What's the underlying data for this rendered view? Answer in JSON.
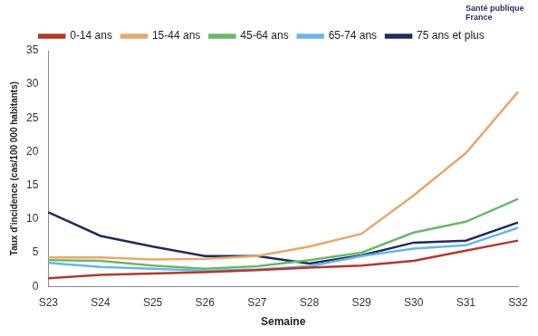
{
  "chart_data": {
    "type": "line",
    "x_label": "Semaine",
    "y_label": "Taux d'incidence (cas/100 000 habitants)",
    "annotations": [
      "Santé publique France"
    ],
    "categories": [
      "S23",
      "S24",
      "S25",
      "S26",
      "S27",
      "S28",
      "S29",
      "S30",
      "S31",
      "S32"
    ],
    "series": [
      {
        "name": "0-14 ans",
        "color": "#b03a2e",
        "values": [
          1.2,
          1.7,
          1.9,
          2.1,
          2.4,
          2.8,
          3.1,
          3.8,
          5.3,
          6.8
        ]
      },
      {
        "name": "15-44 ans",
        "color": "#e6a86c",
        "values": [
          4.3,
          4.3,
          4.0,
          4.1,
          4.5,
          5.9,
          7.8,
          13.5,
          19.8,
          28.9
        ]
      },
      {
        "name": "45-64 ans",
        "color": "#6ab86a",
        "values": [
          3.9,
          3.8,
          3.1,
          2.6,
          3.0,
          3.9,
          5.0,
          8.0,
          9.6,
          13.0
        ]
      },
      {
        "name": "65-74 ans",
        "color": "#6cb4e8",
        "values": [
          3.5,
          2.9,
          2.6,
          2.3,
          2.5,
          3.0,
          4.5,
          5.6,
          6.1,
          8.7
        ]
      },
      {
        "name": "75 ans et plus",
        "color": "#1f2d5c",
        "values": [
          11.0,
          7.5,
          5.9,
          4.5,
          4.5,
          3.4,
          4.6,
          6.5,
          6.8,
          9.5
        ]
      }
    ],
    "ylim": [
      0,
      35
    ],
    "yticks": [
      0,
      5,
      10,
      15,
      20,
      25,
      30,
      35
    ],
    "grid": false,
    "legend": "top",
    "marker": "none",
    "line_style": "solid"
  }
}
